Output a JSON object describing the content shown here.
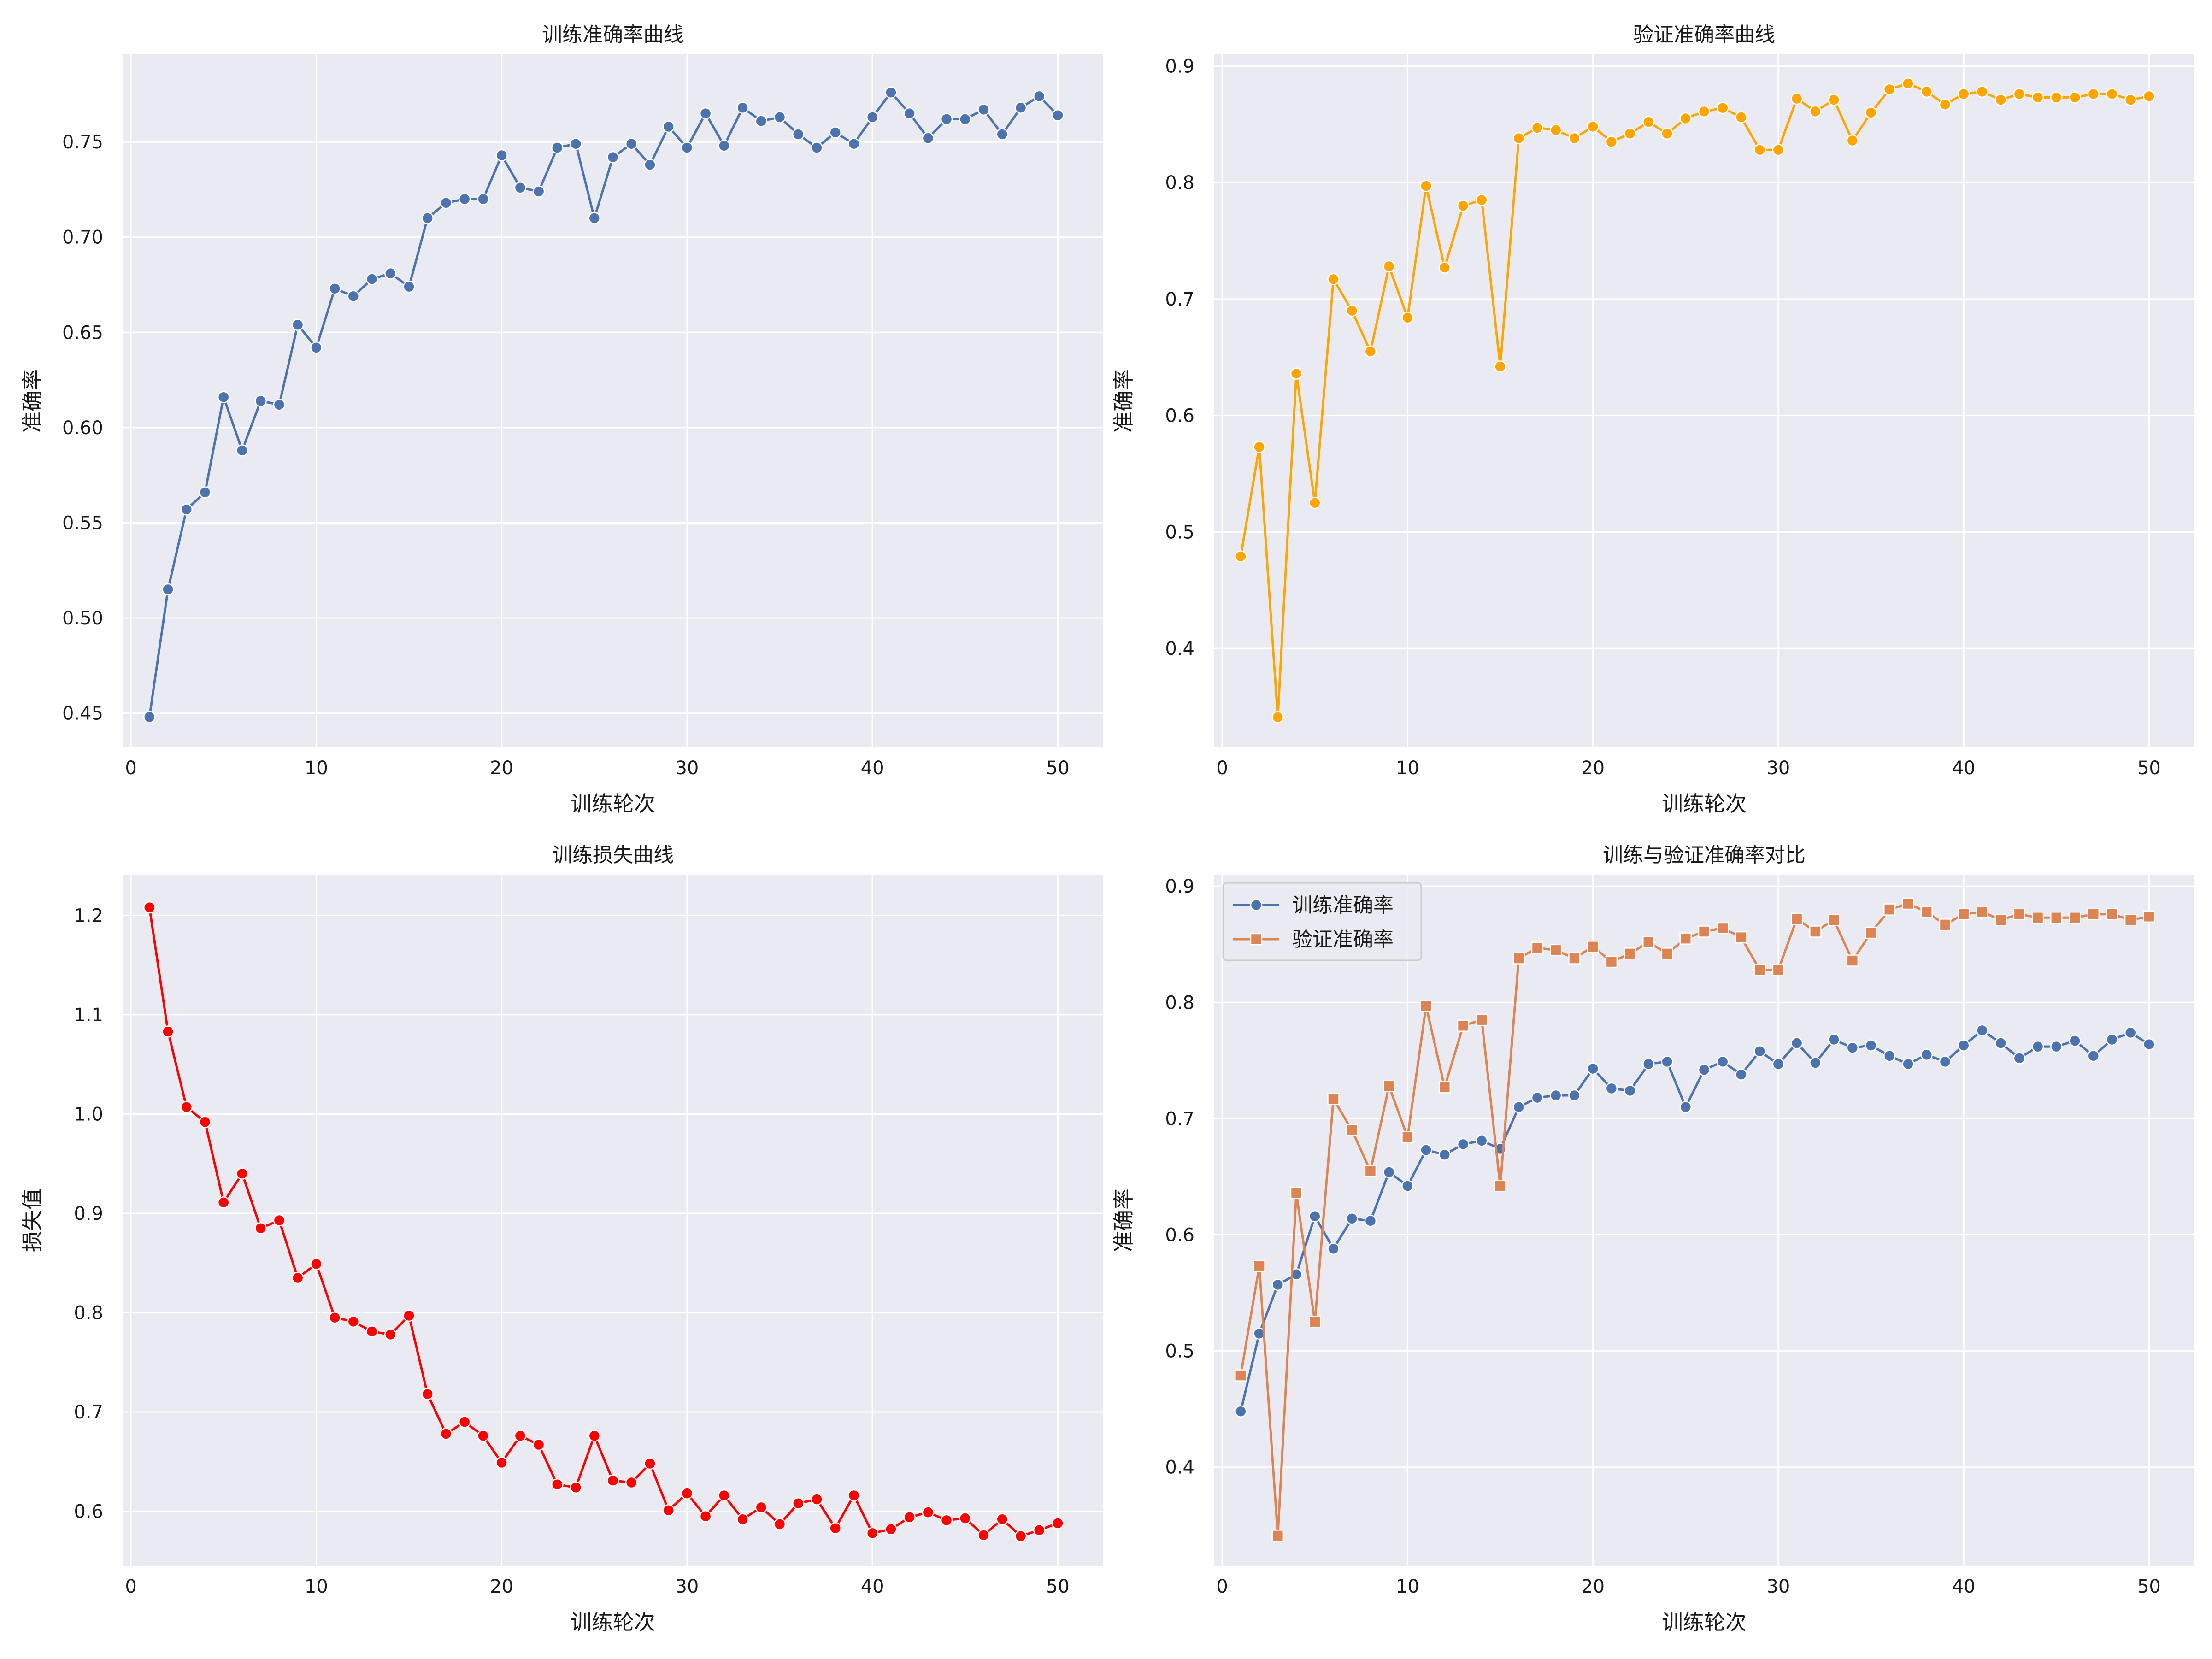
{
  "chart_data": [
    {
      "type": "line",
      "title": "训练准确率曲线",
      "xlabel": "训练轮次",
      "ylabel": "准确率",
      "xlim": [
        -0.45,
        52.45
      ],
      "ylim": [
        0.432,
        0.796
      ],
      "xticks": [
        0,
        10,
        20,
        30,
        40,
        50
      ],
      "yticks": [
        0.45,
        0.5,
        0.55,
        0.6,
        0.65,
        0.7,
        0.75
      ],
      "ytick_labels": [
        "0.45",
        "0.50",
        "0.55",
        "0.60",
        "0.65",
        "0.70",
        "0.75"
      ],
      "grid": true,
      "legend": null,
      "x": [
        1,
        2,
        3,
        4,
        5,
        6,
        7,
        8,
        9,
        10,
        11,
        12,
        13,
        14,
        15,
        16,
        17,
        18,
        19,
        20,
        21,
        22,
        23,
        24,
        25,
        26,
        27,
        28,
        29,
        30,
        31,
        32,
        33,
        34,
        35,
        36,
        37,
        38,
        39,
        40,
        41,
        42,
        43,
        44,
        45,
        46,
        47,
        48,
        49,
        50
      ],
      "series": [
        {
          "color": "#4C72B0",
          "marker": "circle",
          "values": [
            0.448,
            0.515,
            0.557,
            0.566,
            0.616,
            0.588,
            0.614,
            0.612,
            0.654,
            0.642,
            0.673,
            0.669,
            0.678,
            0.681,
            0.674,
            0.71,
            0.718,
            0.72,
            0.72,
            0.743,
            0.726,
            0.724,
            0.747,
            0.749,
            0.71,
            0.742,
            0.749,
            0.738,
            0.758,
            0.747,
            0.765,
            0.748,
            0.768,
            0.761,
            0.763,
            0.754,
            0.747,
            0.755,
            0.749,
            0.763,
            0.776,
            0.765,
            0.752,
            0.762,
            0.762,
            0.767,
            0.754,
            0.768,
            0.774,
            0.764
          ]
        }
      ]
    },
    {
      "type": "line",
      "title": "验证准确率曲线",
      "xlabel": "训练轮次",
      "ylabel": "准确率",
      "xlim": [
        -0.45,
        52.45
      ],
      "ylim": [
        0.315,
        0.91
      ],
      "xticks": [
        0,
        10,
        20,
        30,
        40,
        50
      ],
      "yticks": [
        0.4,
        0.5,
        0.6,
        0.7,
        0.8,
        0.9
      ],
      "ytick_labels": [
        "0.4",
        "0.5",
        "0.6",
        "0.7",
        "0.8",
        "0.9"
      ],
      "grid": true,
      "legend": null,
      "x": [
        1,
        2,
        3,
        4,
        5,
        6,
        7,
        8,
        9,
        10,
        11,
        12,
        13,
        14,
        15,
        16,
        17,
        18,
        19,
        20,
        21,
        22,
        23,
        24,
        25,
        26,
        27,
        28,
        29,
        30,
        31,
        32,
        33,
        34,
        35,
        36,
        37,
        38,
        39,
        40,
        41,
        42,
        43,
        44,
        45,
        46,
        47,
        48,
        49,
        50
      ],
      "series": [
        {
          "color": "#FFA500",
          "marker": "circle",
          "values": [
            0.479,
            0.573,
            0.341,
            0.636,
            0.525,
            0.717,
            0.69,
            0.655,
            0.728,
            0.684,
            0.797,
            0.727,
            0.78,
            0.785,
            0.642,
            0.838,
            0.847,
            0.845,
            0.838,
            0.848,
            0.835,
            0.842,
            0.852,
            0.842,
            0.855,
            0.861,
            0.864,
            0.856,
            0.828,
            0.828,
            0.872,
            0.861,
            0.871,
            0.836,
            0.86,
            0.88,
            0.885,
            0.878,
            0.867,
            0.876,
            0.878,
            0.871,
            0.876,
            0.873,
            0.873,
            0.873,
            0.876,
            0.876,
            0.871,
            0.874
          ]
        }
      ]
    },
    {
      "type": "line",
      "title": "训练损失曲线",
      "xlabel": "训练轮次",
      "ylabel": "损失值",
      "xlim": [
        -0.45,
        52.45
      ],
      "ylim": [
        0.545,
        1.241
      ],
      "xticks": [
        0,
        10,
        20,
        30,
        40,
        50
      ],
      "yticks": [
        0.6,
        0.7,
        0.8,
        0.9,
        1.0,
        1.1,
        1.2
      ],
      "ytick_labels": [
        "0.6",
        "0.7",
        "0.8",
        "0.9",
        "1.0",
        "1.1",
        "1.2"
      ],
      "grid": true,
      "legend": null,
      "x": [
        1,
        2,
        3,
        4,
        5,
        6,
        7,
        8,
        9,
        10,
        11,
        12,
        13,
        14,
        15,
        16,
        17,
        18,
        19,
        20,
        21,
        22,
        23,
        24,
        25,
        26,
        27,
        28,
        29,
        30,
        31,
        32,
        33,
        34,
        35,
        36,
        37,
        38,
        39,
        40,
        41,
        42,
        43,
        44,
        45,
        46,
        47,
        48,
        49,
        50
      ],
      "series": [
        {
          "color": "#FF0000",
          "marker": "circle",
          "values": [
            1.208,
            1.083,
            1.007,
            0.992,
            0.911,
            0.94,
            0.885,
            0.893,
            0.835,
            0.849,
            0.795,
            0.791,
            0.781,
            0.778,
            0.797,
            0.718,
            0.678,
            0.69,
            0.676,
            0.649,
            0.676,
            0.667,
            0.627,
            0.624,
            0.676,
            0.631,
            0.629,
            0.648,
            0.601,
            0.618,
            0.595,
            0.616,
            0.592,
            0.604,
            0.587,
            0.608,
            0.612,
            0.583,
            0.616,
            0.578,
            0.582,
            0.594,
            0.599,
            0.591,
            0.593,
            0.576,
            0.592,
            0.575,
            0.581,
            0.588
          ]
        }
      ]
    },
    {
      "type": "line",
      "title": "训练与验证准确率对比",
      "xlabel": "训练轮次",
      "ylabel": "准确率",
      "xlim": [
        -0.45,
        52.45
      ],
      "ylim": [
        0.315,
        0.91
      ],
      "xticks": [
        0,
        10,
        20,
        30,
        40,
        50
      ],
      "yticks": [
        0.4,
        0.5,
        0.6,
        0.7,
        0.8,
        0.9
      ],
      "ytick_labels": [
        "0.4",
        "0.5",
        "0.6",
        "0.7",
        "0.8",
        "0.9"
      ],
      "grid": true,
      "legend": "top-left",
      "x": [
        1,
        2,
        3,
        4,
        5,
        6,
        7,
        8,
        9,
        10,
        11,
        12,
        13,
        14,
        15,
        16,
        17,
        18,
        19,
        20,
        21,
        22,
        23,
        24,
        25,
        26,
        27,
        28,
        29,
        30,
        31,
        32,
        33,
        34,
        35,
        36,
        37,
        38,
        39,
        40,
        41,
        42,
        43,
        44,
        45,
        46,
        47,
        48,
        49,
        50
      ],
      "series": [
        {
          "name": "训练准确率",
          "color": "#4C72B0",
          "marker": "circle",
          "values": [
            0.448,
            0.515,
            0.557,
            0.566,
            0.616,
            0.588,
            0.614,
            0.612,
            0.654,
            0.642,
            0.673,
            0.669,
            0.678,
            0.681,
            0.674,
            0.71,
            0.718,
            0.72,
            0.72,
            0.743,
            0.726,
            0.724,
            0.747,
            0.749,
            0.71,
            0.742,
            0.749,
            0.738,
            0.758,
            0.747,
            0.765,
            0.748,
            0.768,
            0.761,
            0.763,
            0.754,
            0.747,
            0.755,
            0.749,
            0.763,
            0.776,
            0.765,
            0.752,
            0.762,
            0.762,
            0.767,
            0.754,
            0.768,
            0.774,
            0.764
          ]
        },
        {
          "name": "验证准确率",
          "color": "#DD8452",
          "marker": "square",
          "values": [
            0.479,
            0.573,
            0.341,
            0.636,
            0.525,
            0.717,
            0.69,
            0.655,
            0.728,
            0.684,
            0.797,
            0.727,
            0.78,
            0.785,
            0.642,
            0.838,
            0.847,
            0.845,
            0.838,
            0.848,
            0.835,
            0.842,
            0.852,
            0.842,
            0.855,
            0.861,
            0.864,
            0.856,
            0.828,
            0.828,
            0.872,
            0.861,
            0.871,
            0.836,
            0.86,
            0.88,
            0.885,
            0.878,
            0.867,
            0.876,
            0.878,
            0.871,
            0.876,
            0.873,
            0.873,
            0.873,
            0.876,
            0.876,
            0.871,
            0.874
          ]
        }
      ]
    }
  ],
  "style": {
    "plot_background": "#EAEAF2",
    "grid_color": "#FFFFFF",
    "figure_background": "#FFFFFF"
  }
}
